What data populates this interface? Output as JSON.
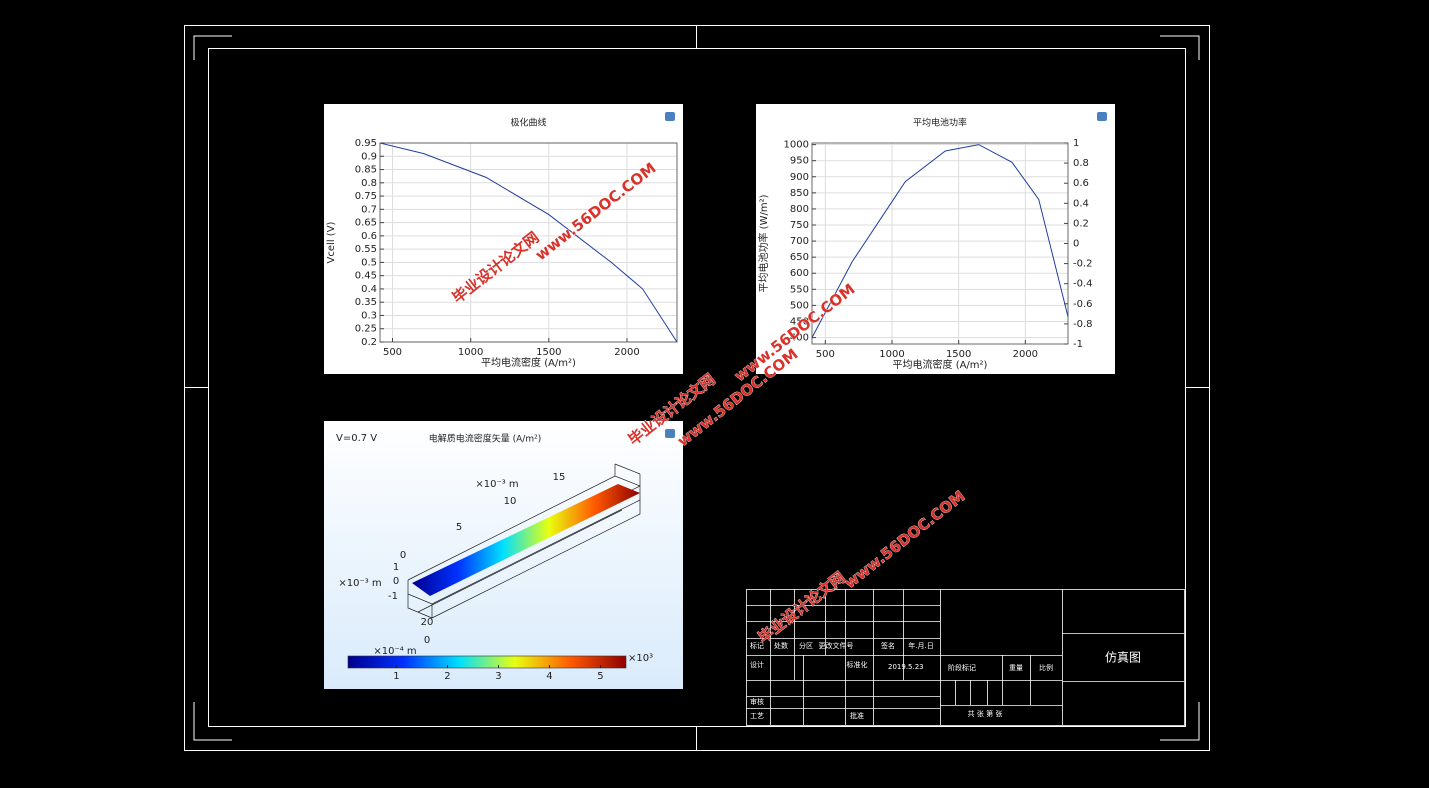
{
  "chart_data": [
    {
      "type": "line",
      "title": "极化曲线",
      "x_label": "平均电流密度 (A/m²)",
      "y_label": "Vcell (V)",
      "x": [
        420,
        700,
        1100,
        1500,
        1900,
        2100,
        2320
      ],
      "values": [
        0.95,
        0.91,
        0.82,
        0.68,
        0.5,
        0.4,
        0.2
      ],
      "color": "#1f3f9f",
      "xlim": [
        420,
        2320
      ],
      "xticks": [
        500,
        1000,
        1500,
        2000
      ],
      "ylim": [
        0.2,
        0.95
      ],
      "yticks": [
        0.2,
        0.25,
        0.3,
        0.35,
        0.4,
        0.45,
        0.5,
        0.55,
        0.6,
        0.65,
        0.7,
        0.75,
        0.8,
        0.85,
        0.9,
        0.95
      ],
      "grid": true
    },
    {
      "type": "line",
      "title": "平均电池功率",
      "x_label": "平均电流密度 (A/m²)",
      "y_label": "平均电池功率 (W/m²)",
      "x": [
        400,
        700,
        1100,
        1400,
        1650,
        1900,
        2100,
        2320
      ],
      "values": [
        400,
        635,
        885,
        980,
        1000,
        945,
        830,
        465
      ],
      "color": "#1f3f9f",
      "xlim": [
        400,
        2320
      ],
      "xticks": [
        500,
        1000,
        1500,
        2000
      ],
      "ylim": [
        380,
        1005
      ],
      "yticks": [
        400,
        450,
        500,
        550,
        600,
        650,
        700,
        750,
        800,
        850,
        900,
        950,
        1000
      ],
      "y2lim": [
        -1,
        1
      ],
      "y2ticks": [
        -1,
        -0.8,
        -0.6,
        -0.4,
        -0.2,
        0,
        0.2,
        0.4,
        0.6,
        0.8,
        1
      ],
      "grid": true
    },
    {
      "type": "surface",
      "title": "电解质电流密度矢量 (A/m²)",
      "annotation": "V=0.7 V",
      "axis_labels": [
        "×10⁻³ m",
        "×10⁻³ m",
        "×10⁻⁴ m"
      ],
      "length_ticks": [
        0,
        5,
        10,
        15
      ],
      "height_ticks": [
        1,
        0,
        -1
      ],
      "width_ticks": [
        20,
        0
      ],
      "clim": [
        0.05,
        5.5
      ],
      "cticks": [
        1,
        2,
        3,
        4,
        5
      ],
      "clabel": "×10³"
    }
  ],
  "title_block": {
    "drawing_name": "仿真图",
    "date": "2019.5.23",
    "labels": [
      "标记",
      "处数",
      "分区",
      "更改文件号",
      "签名",
      "年.月.日",
      "设计",
      "标准化",
      "审核",
      "工艺",
      "批准",
      "阶段标记",
      "重量",
      "比例",
      "共 张 第 张"
    ]
  },
  "watermark": {
    "site": "毕业设计论文网",
    "url": "www.56DOC.COM"
  }
}
